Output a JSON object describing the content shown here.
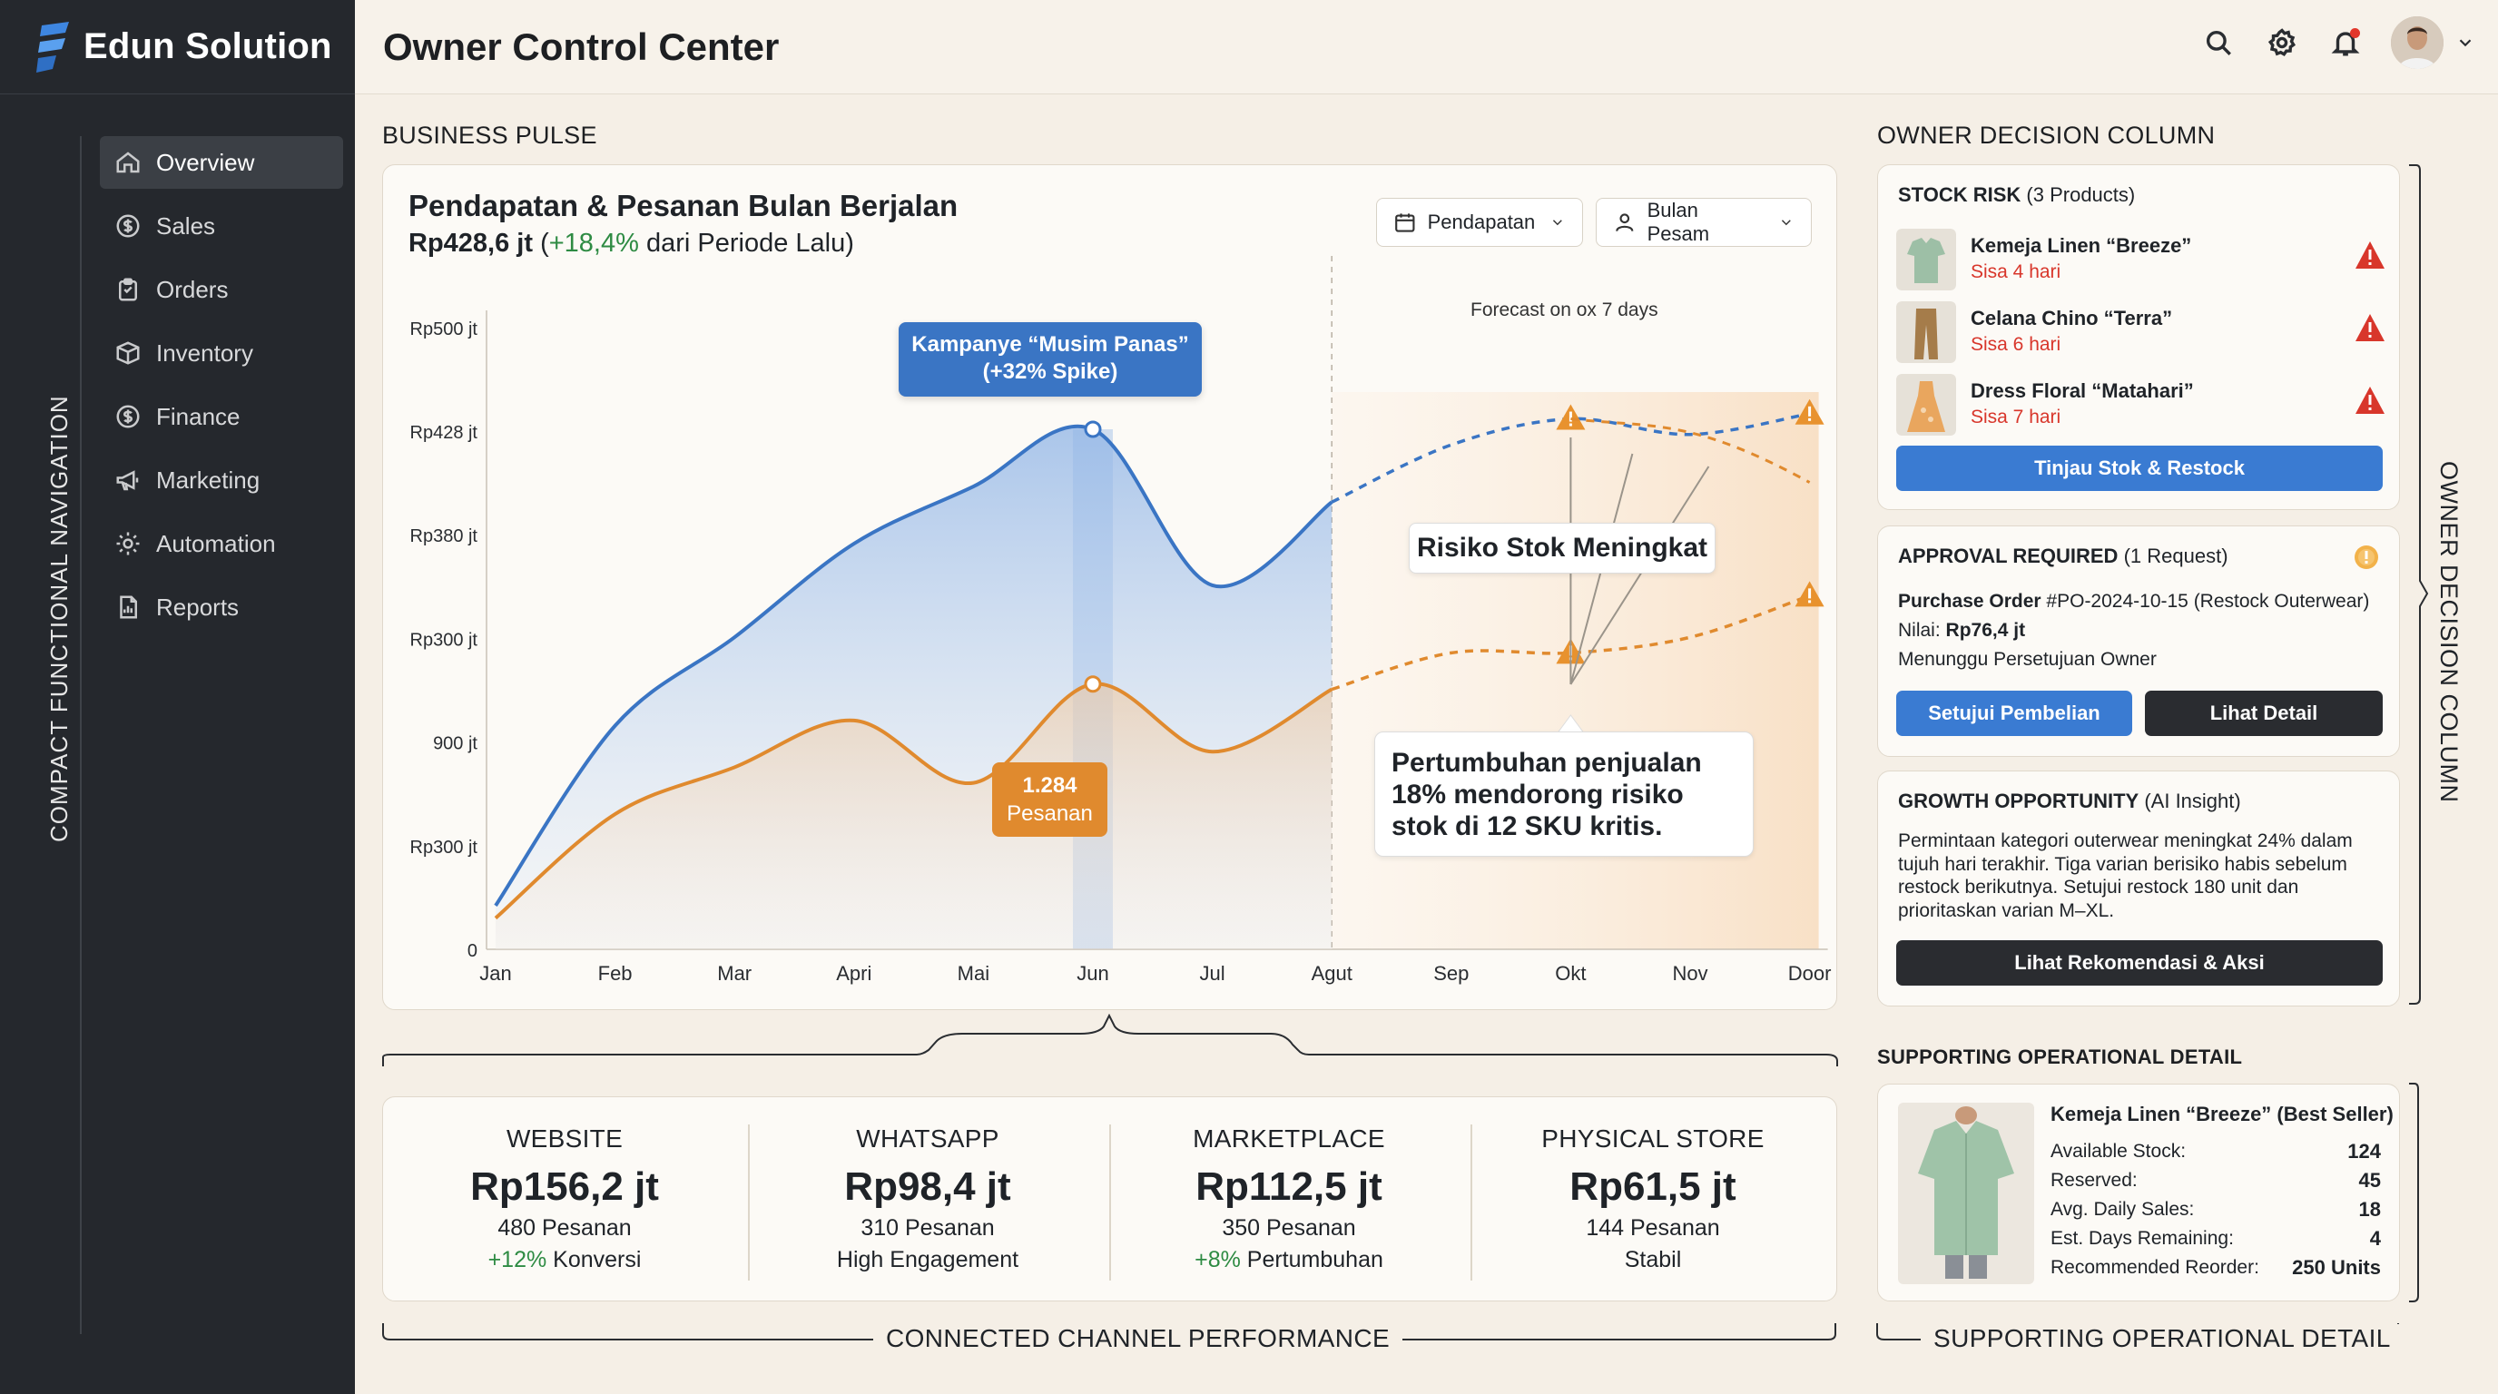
{
  "brand": {
    "name": "Edun Solution"
  },
  "sidebar": {
    "section_label": "COMPACT FUNCTIONAL NAVIGATION",
    "items": [
      {
        "label": "Overview",
        "icon": "home-icon",
        "active": true
      },
      {
        "label": "Sales",
        "icon": "dollar-icon"
      },
      {
        "label": "Orders",
        "icon": "clipboard-icon"
      },
      {
        "label": "Inventory",
        "icon": "box-icon"
      },
      {
        "label": "Finance",
        "icon": "dollar-circle-icon"
      },
      {
        "label": "Marketing",
        "icon": "megaphone-icon"
      },
      {
        "label": "Automation",
        "icon": "gear-icon"
      },
      {
        "label": "Reports",
        "icon": "report-icon"
      }
    ]
  },
  "header": {
    "title": "Owner Control Center",
    "icons": [
      "search-icon",
      "gear-icon",
      "bell-icon",
      "avatar",
      "chevron-down-icon"
    ]
  },
  "business_pulse": {
    "section_label": "BUSINESS PULSE",
    "title": "Pendapatan & Pesanan Bulan Berjalan",
    "value": "Rp428,6 jt",
    "delta": "+18,4%",
    "delta_open": "(",
    "delta_suffix": "dari Periode Lalu)",
    "dropdown_metric": "Pendapatan",
    "dropdown_period": "Bulan Pesam",
    "forecast_label": "Forecast on ox 7 days",
    "callout_campaign_line1": "Kampanye “Musim Panas”",
    "callout_campaign_line2": "(+32% Spike)",
    "callout_orders_value": "1.284",
    "callout_orders_label": "Pesanan",
    "callout_risk": "Risiko Stok Meningkat",
    "callout_growth_line1": "Pertumbuhan penjualan",
    "callout_growth_line2": "18% mendorong risiko",
    "callout_growth_line3": "stok di 12 SKU kritis."
  },
  "chart_data": {
    "type": "area",
    "categories": [
      "Jan",
      "Feb",
      "Mar",
      "Apri",
      "Mai",
      "Jun",
      "Jul",
      "Agut",
      "Sep",
      "Okt",
      "Nov",
      "Door"
    ],
    "y_tick_labels": [
      "0",
      "Rp300 jt",
      "900 jt",
      "Rp300 jt",
      "Rp380 jt",
      "Rp428 jt",
      "Rp500 jt"
    ],
    "series": [
      {
        "values": [
          0.42,
          2.15,
          3.0,
          3.9,
          4.45,
          5.0,
          3.5,
          4.3,
          4.85,
          5.1,
          4.95,
          5.15
        ],
        "forecast_from_index": 7,
        "color": "#3a75c4"
      },
      {
        "values": [
          0.3,
          1.3,
          1.75,
          2.2,
          1.6,
          2.55,
          1.9,
          2.5,
          2.85,
          2.85,
          3.0,
          3.4
        ],
        "forecast_from_index": 7,
        "color": "#e08a2e"
      }
    ],
    "highlight_category": "Jun",
    "forecast_start_category": "Agut"
  },
  "channels": {
    "section_label": "CONNECTED CHANNEL PERFORMANCE",
    "items": [
      {
        "name": "WEBSITE",
        "value": "Rp156,2 jt",
        "line1": "480 Pesanan",
        "line2_green": "+12%",
        "line2": "Konversi"
      },
      {
        "name": "WHATSAPP",
        "value": "Rp98,4 jt",
        "line1": "310 Pesanan",
        "line2_green": "",
        "line2": "High Engagement"
      },
      {
        "name": "MARKETPLACE",
        "value": "Rp112,5 jt",
        "line1": "350 Pesanan",
        "line2_green": "+8%",
        "line2": "Pertumbuhan"
      },
      {
        "name": "PHYSICAL STORE",
        "value": "Rp61,5 jt",
        "line1": "144 Pesanan",
        "line2_green": "",
        "line2": "Stabil"
      }
    ]
  },
  "decision": {
    "section_label": "OWNER DECISION COLUMN",
    "side_label": "OWNER DECISION COLUMN",
    "stock_risk": {
      "title": "STOCK RISK",
      "count": "(3 Products)",
      "items": [
        {
          "name": "Kemeja Linen “Breeze”",
          "days": "Sisa 4 hari"
        },
        {
          "name": "Celana Chino “Terra”",
          "days": "Sisa 6 hari"
        },
        {
          "name": "Dress Floral “Matahari”",
          "days": "Sisa 7 hari"
        }
      ],
      "button": "Tinjau Stok & Restock"
    },
    "approval": {
      "title": "APPROVAL REQUIRED",
      "count": "(1 Request)",
      "po_label": "Purchase Order",
      "po_value": "#PO-2024-10-15 (Restock Outerwear)",
      "amount_label": "Nilai:",
      "amount": "Rp76,4 jt",
      "status": "Menunggu Persetujuan Owner",
      "approve_button": "Setujui Pembelian",
      "detail_button": "Lihat Detail"
    },
    "growth": {
      "title": "GROWTH OPPORTUNITY",
      "tag": "(AI Insight)",
      "line1": "Permintaan kategori outerwear meningkat 24% dalam",
      "line2": "tujuh hari terakhir. Tiga varian berisiko habis sebelum",
      "line3": "restock berikutnya. Setujui restock 180 unit dan",
      "line4": "prioritaskan varian M–XL.",
      "button": "Lihat Rekomendasi & Aksi"
    }
  },
  "operational": {
    "section_label": "SUPPORTING OPERATIONAL DETAIL",
    "bottom_label": "SUPPORTING OPERATIONAL DETAIL",
    "product": "Kemeja Linen “Breeze” (Best Seller)",
    "rows": [
      {
        "label": "Available Stock:",
        "value": "124"
      },
      {
        "label": "Reserved:",
        "value": "45"
      },
      {
        "label": "Avg. Daily Sales:",
        "value": "18"
      },
      {
        "label": "Est. Days Remaining:",
        "value": "4"
      },
      {
        "label": "Recommended Reorder:",
        "value": "250 Units"
      }
    ]
  }
}
